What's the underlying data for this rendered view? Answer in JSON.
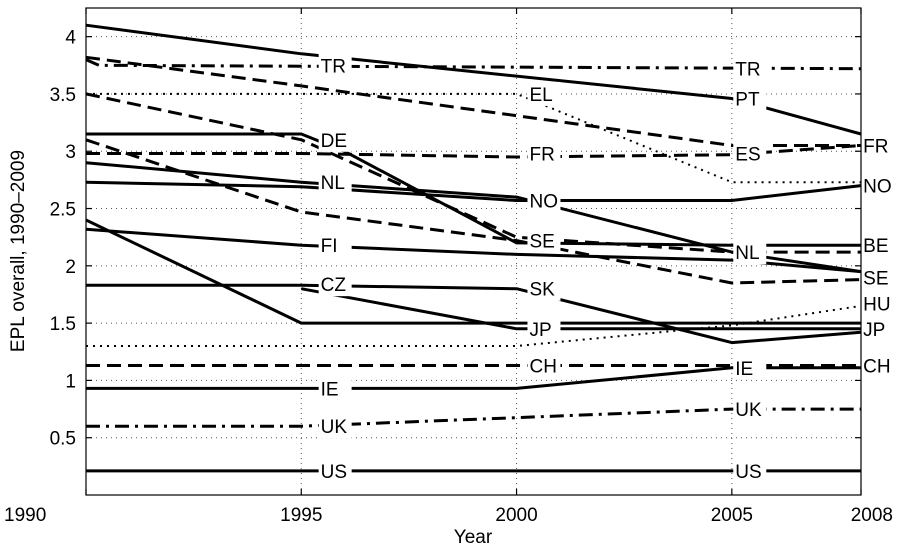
{
  "chart_data": {
    "type": "line",
    "xlabel": "Year",
    "ylabel": "EPL overall, 1990–2009",
    "xlim": [
      1990,
      2008
    ],
    "ylim": [
      0,
      4.25
    ],
    "x_ticks": [
      1990,
      1995,
      2000,
      2005,
      2008
    ],
    "y_ticks": [
      0.5,
      1,
      1.5,
      2,
      2.5,
      3,
      3.5,
      4
    ],
    "y_tick_labels": [
      "0.5",
      "1",
      "1.5",
      "2",
      "2.5",
      "3",
      "3.5",
      "4"
    ],
    "grid": "dotted",
    "series": [
      {
        "name": "PT",
        "style": "solid",
        "x": [
          1990,
          1995,
          2005,
          2008
        ],
        "y": [
          4.1,
          3.85,
          3.46,
          3.15
        ]
      },
      {
        "name": "TR",
        "style": "dashdot",
        "x": [
          1990,
          1990.3,
          2008
        ],
        "y": [
          3.8,
          3.75,
          3.72
        ]
      },
      {
        "name": "ES",
        "style": "dashed",
        "x": [
          1990,
          1995,
          2005,
          2008
        ],
        "y": [
          3.82,
          3.57,
          3.05,
          3.05
        ]
      },
      {
        "name": "EL",
        "style": "dotted",
        "x": [
          1990,
          1995,
          2000,
          2005,
          2008
        ],
        "y": [
          3.5,
          3.5,
          3.5,
          2.73,
          2.73
        ]
      },
      {
        "name": "DE",
        "style": "dashed",
        "x": [
          1990,
          1995,
          2000,
          2005,
          2008
        ],
        "y": [
          3.5,
          3.1,
          2.25,
          2.12,
          2.12
        ]
      },
      {
        "name": "BE",
        "style": "solid",
        "x": [
          1990,
          1995,
          1996,
          2000,
          2005,
          2008
        ],
        "y": [
          3.15,
          3.15,
          3.0,
          2.2,
          2.18,
          2.18
        ]
      },
      {
        "name": "FR",
        "style": "dashed",
        "x": [
          1990,
          1995,
          2000,
          2005,
          2008
        ],
        "y": [
          2.98,
          2.98,
          2.95,
          2.97,
          3.05
        ]
      },
      {
        "name": "NL",
        "style": "solid",
        "x": [
          1990,
          1995,
          2000,
          2005,
          2008
        ],
        "y": [
          2.9,
          2.73,
          2.6,
          2.12,
          1.95
        ]
      },
      {
        "name": "NO",
        "style": "solid",
        "x": [
          1990,
          1995,
          2000,
          2005,
          2008
        ],
        "y": [
          2.73,
          2.69,
          2.57,
          2.57,
          2.7
        ]
      },
      {
        "name": "SE",
        "style": "dashed",
        "x": [
          1990,
          1995,
          2000,
          2005,
          2008
        ],
        "y": [
          3.1,
          2.47,
          2.22,
          1.85,
          1.88
        ]
      },
      {
        "name": "FI",
        "style": "solid",
        "x": [
          1990,
          1995,
          2000,
          2005,
          2008
        ],
        "y": [
          2.32,
          2.18,
          2.1,
          2.05,
          1.95
        ]
      },
      {
        "name": "HU",
        "style": "dotted",
        "x": [
          1990,
          1995,
          2000,
          2005,
          2008
        ],
        "y": [
          1.3,
          1.3,
          1.3,
          1.48,
          1.65
        ]
      },
      {
        "name": "CZ",
        "style": "solid",
        "x": [
          1990,
          1995,
          2000,
          2005,
          2008
        ],
        "y": [
          1.83,
          1.83,
          1.8,
          1.33,
          1.42
        ]
      },
      {
        "name": "SK",
        "style": "solid",
        "x": [
          1995,
          2000,
          2008
        ],
        "y": [
          1.8,
          1.45,
          1.45
        ]
      },
      {
        "name": "JP",
        "style": "solid",
        "x": [
          1990,
          1995,
          2000,
          2005,
          2008
        ],
        "y": [
          2.4,
          1.5,
          1.5,
          1.5,
          1.5
        ]
      },
      {
        "name": "CH",
        "style": "dashed",
        "x": [
          1990,
          2008
        ],
        "y": [
          1.13,
          1.13
        ]
      },
      {
        "name": "IE",
        "style": "solid",
        "x": [
          1990,
          1995,
          2000,
          2005,
          2008
        ],
        "y": [
          0.93,
          0.93,
          0.93,
          1.11,
          1.11
        ]
      },
      {
        "name": "UK",
        "style": "dashdot",
        "x": [
          1990,
          1995,
          2005,
          2008
        ],
        "y": [
          0.6,
          0.6,
          0.75,
          0.75
        ]
      },
      {
        "name": "US",
        "style": "solid",
        "x": [
          1990,
          2008
        ],
        "y": [
          0.21,
          0.21
        ]
      }
    ],
    "annotations": [
      {
        "text": "TR",
        "x": 1995.45,
        "y": 3.75
      },
      {
        "text": "DE",
        "x": 1995.45,
        "y": 3.1
      },
      {
        "text": "NL",
        "x": 1995.45,
        "y": 2.73
      },
      {
        "text": "FI",
        "x": 1995.45,
        "y": 2.18
      },
      {
        "text": "CZ",
        "x": 1995.45,
        "y": 1.84
      },
      {
        "text": "IE",
        "x": 1995.45,
        "y": 0.93
      },
      {
        "text": "UK",
        "x": 1995.45,
        "y": 0.6
      },
      {
        "text": "US",
        "x": 1995.45,
        "y": 0.21
      },
      {
        "text": "EL",
        "x": 2000.3,
        "y": 3.5
      },
      {
        "text": "FR",
        "x": 2000.3,
        "y": 2.98
      },
      {
        "text": "NO",
        "x": 2000.3,
        "y": 2.57
      },
      {
        "text": "SE",
        "x": 2000.3,
        "y": 2.22
      },
      {
        "text": "SK",
        "x": 2000.3,
        "y": 1.8
      },
      {
        "text": "JP",
        "x": 2000.3,
        "y": 1.45
      },
      {
        "text": "CH",
        "x": 2000.3,
        "y": 1.13
      },
      {
        "text": "TR",
        "x": 2005.08,
        "y": 3.72
      },
      {
        "text": "PT",
        "x": 2005.08,
        "y": 3.46
      },
      {
        "text": "ES",
        "x": 2005.08,
        "y": 2.98
      },
      {
        "text": "NL",
        "x": 2005.08,
        "y": 2.12
      },
      {
        "text": "IE",
        "x": 2005.08,
        "y": 1.11
      },
      {
        "text": "UK",
        "x": 2005.08,
        "y": 0.75
      },
      {
        "text": "US",
        "x": 2005.08,
        "y": 0.21
      },
      {
        "text": "FR",
        "x": 2008.05,
        "y": 3.05
      },
      {
        "text": "NO",
        "x": 2008.05,
        "y": 2.7
      },
      {
        "text": "BE",
        "x": 2008.05,
        "y": 2.18
      },
      {
        "text": "SE",
        "x": 2008.05,
        "y": 1.9
      },
      {
        "text": "HU",
        "x": 2008.05,
        "y": 1.67
      },
      {
        "text": "JP",
        "x": 2008.05,
        "y": 1.45
      },
      {
        "text": "CH",
        "x": 2008.05,
        "y": 1.13
      }
    ]
  }
}
